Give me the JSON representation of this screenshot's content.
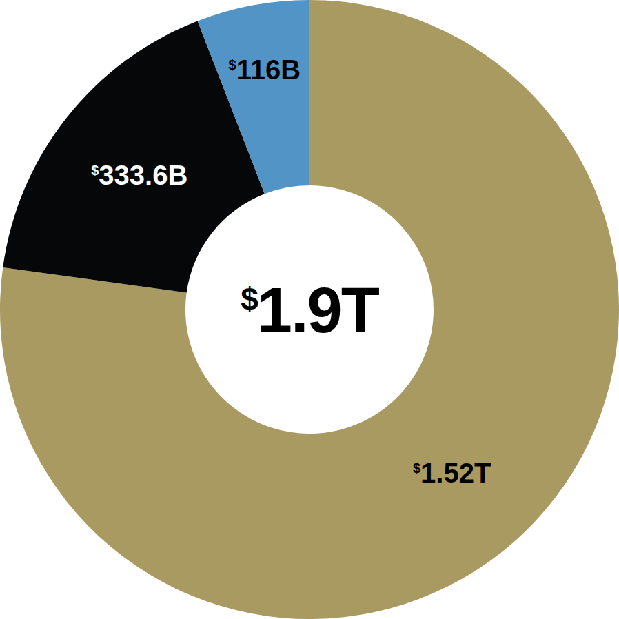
{
  "chart_data": {
    "type": "donut",
    "values": [
      1520,
      333.6,
      116
    ],
    "value_labels": [
      "$1.52T",
      "$333.6B",
      "$116B"
    ],
    "colors": [
      "#a99a62",
      "#050708",
      "#5294c6"
    ],
    "data_labels": true,
    "annotations": [
      "$1.9T"
    ]
  }
}
